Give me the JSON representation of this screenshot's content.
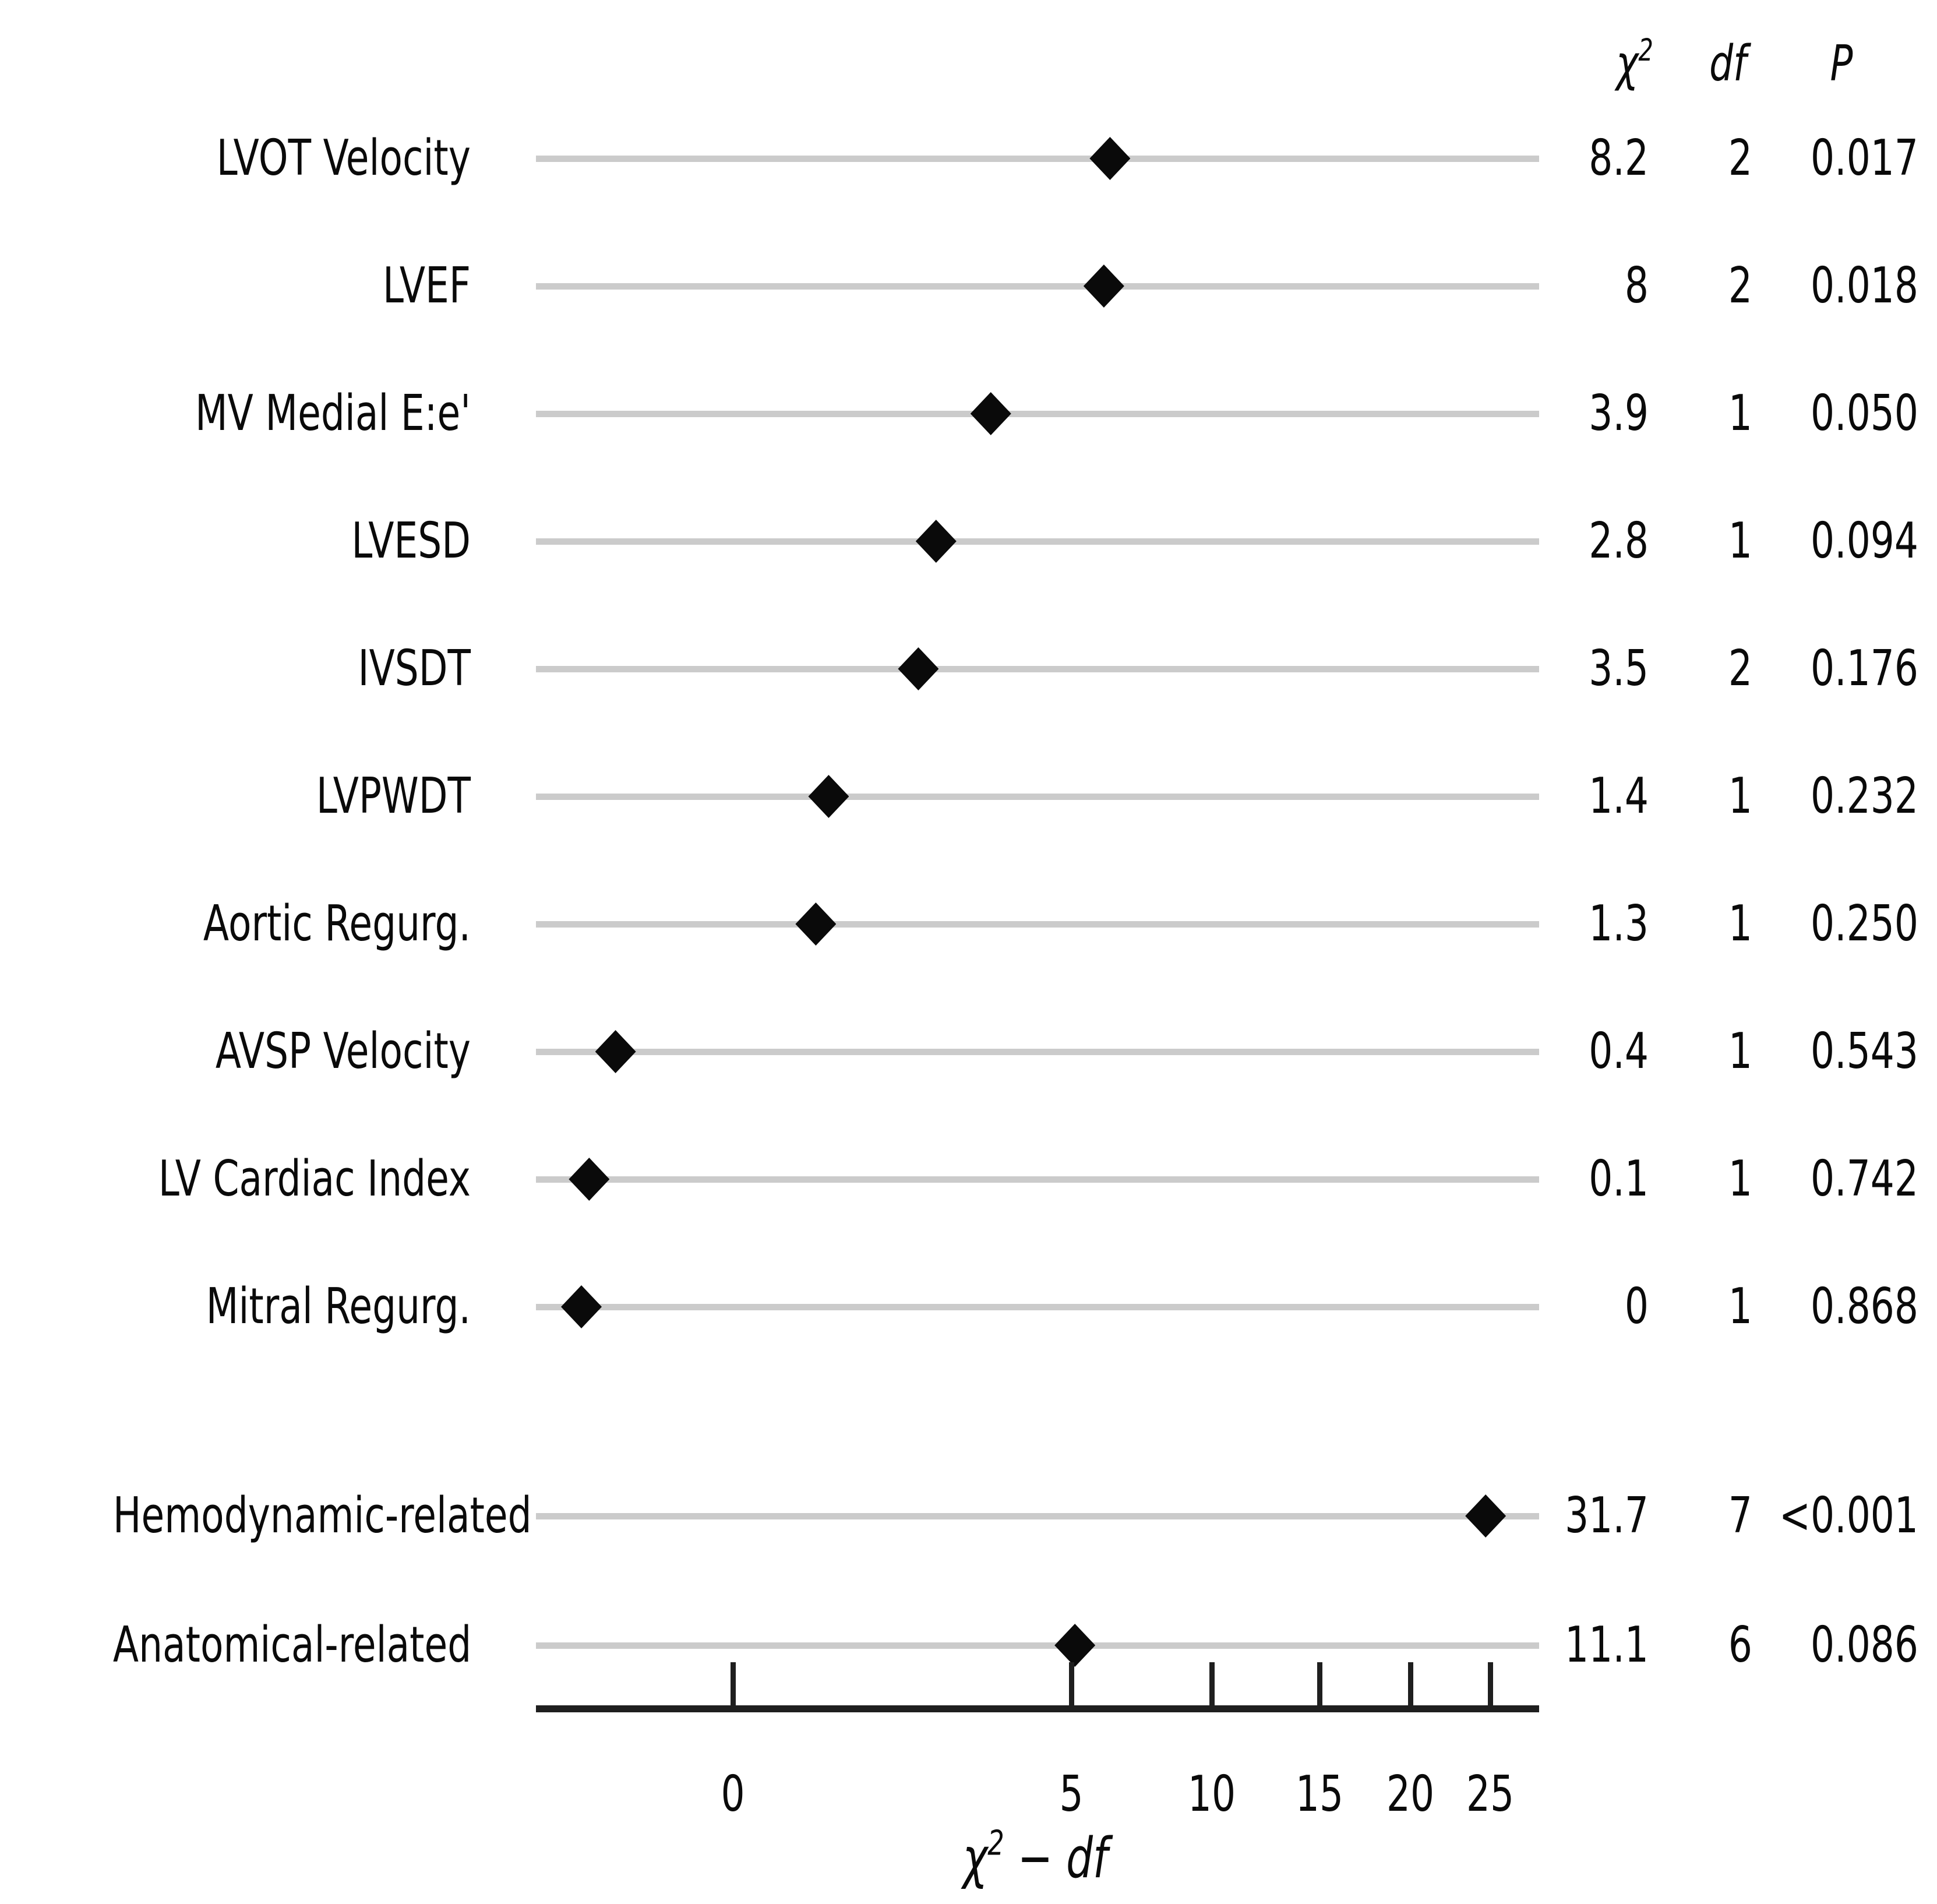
{
  "chart_data": {
    "type": "scatter",
    "subtype": "dot-chart of chi-square minus df (forest style)",
    "title": "",
    "xlabel": "χ² − df",
    "x_scale": "sqrt",
    "x_ticks": [
      0,
      5,
      10,
      15,
      20,
      25
    ],
    "x_range_drawn": [
      -1.7,
      28
    ],
    "grid": false,
    "legend": "none",
    "marker": "filled black diamond",
    "columns": {
      "chi2": "χ²",
      "df": "df",
      "p": "P"
    },
    "rows": [
      {
        "label": "LVOT Velocity",
        "chisq": "8.2",
        "df": "2",
        "p": "0.017",
        "chisq_minus_df": 6.2,
        "group": false
      },
      {
        "label": "LVEF",
        "chisq": "8",
        "df": "2",
        "p": "0.018",
        "chisq_minus_df": 6.0,
        "group": false
      },
      {
        "label": "MV Medial E:e'",
        "chisq": "3.9",
        "df": "1",
        "p": "0.050",
        "chisq_minus_df": 2.9,
        "group": false
      },
      {
        "label": "LVESD",
        "chisq": "2.8",
        "df": "1",
        "p": "0.094",
        "chisq_minus_df": 1.8,
        "group": false
      },
      {
        "label": "IVSDT",
        "chisq": "3.5",
        "df": "2",
        "p": "0.176",
        "chisq_minus_df": 1.5,
        "group": false
      },
      {
        "label": "LVPWDT",
        "chisq": "1.4",
        "df": "1",
        "p": "0.232",
        "chisq_minus_df": 0.4,
        "group": false
      },
      {
        "label": "Aortic Regurg.",
        "chisq": "1.3",
        "df": "1",
        "p": "0.250",
        "chisq_minus_df": 0.3,
        "group": false
      },
      {
        "label": "AVSP Velocity",
        "chisq": "0.4",
        "df": "1",
        "p": "0.543",
        "chisq_minus_df": -0.6,
        "group": false
      },
      {
        "label": "LV Cardiac Index",
        "chisq": "0.1",
        "df": "1",
        "p": "0.742",
        "chisq_minus_df": -0.9,
        "group": false
      },
      {
        "label": "Mitral Regurg.",
        "chisq": "0",
        "df": "1",
        "p": "0.868",
        "chisq_minus_df": -1.0,
        "group": false
      },
      {
        "label": "Hemodynamic-related",
        "chisq": "31.7",
        "df": "7",
        "p": "<0.001",
        "chisq_minus_df": 24.7,
        "group": true
      },
      {
        "label": "Anatomical-related",
        "chisq": "11.1",
        "df": "6",
        "p": "0.086",
        "chisq_minus_df": 5.1,
        "group": true
      }
    ]
  },
  "header": {
    "chi2_base": "χ",
    "chi2_sup": "2",
    "df": "df",
    "p": "P"
  },
  "xaxis_title": {
    "base": "χ",
    "sup": "2",
    "rest": " − df"
  },
  "colors": {
    "background": "#ffffff",
    "row_line": "#cbcbcb",
    "marker": "#0a0a0a",
    "axis": "#1f1f1f",
    "text": "#0a0a0a"
  }
}
